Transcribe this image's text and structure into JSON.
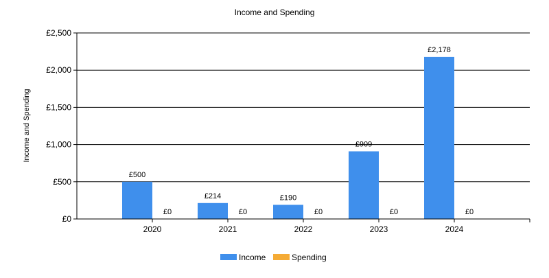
{
  "chart_data": {
    "type": "bar",
    "title": "Income and Spending",
    "xlabel": "",
    "ylabel": "Income and Spending",
    "categories": [
      "2020",
      "2021",
      "2022",
      "2023",
      "2024"
    ],
    "series": [
      {
        "name": "Income",
        "color": "#3f8fec",
        "values": [
          500,
          214,
          190,
          909,
          2178
        ],
        "labels": [
          "£500",
          "£214",
          "£190",
          "£909",
          "£2,178"
        ]
      },
      {
        "name": "Spending",
        "color": "#f5ab35",
        "values": [
          0,
          0,
          0,
          0,
          0
        ],
        "labels": [
          "£0",
          "£0",
          "£0",
          "£0",
          "£0"
        ]
      }
    ],
    "ylim": [
      0,
      2500
    ],
    "yticks": [
      0,
      500,
      1000,
      1500,
      2000,
      2500
    ],
    "ytick_labels": [
      "£0",
      "£500",
      "£1,000",
      "£1,500",
      "£2,000",
      "£2,500"
    ],
    "grid": true,
    "legend_position": "bottom-center"
  }
}
